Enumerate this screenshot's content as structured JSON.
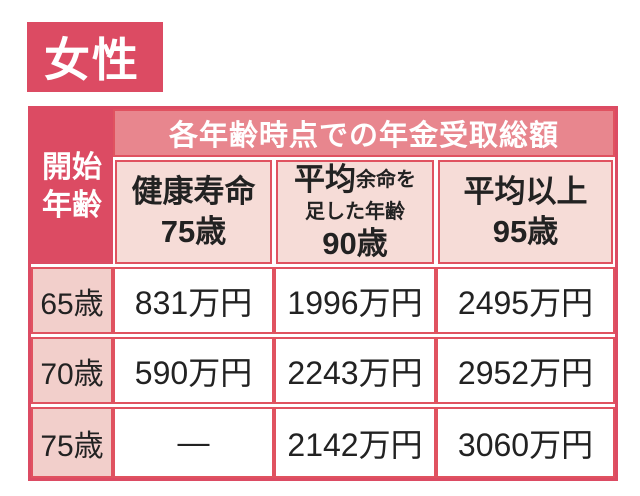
{
  "badge": {
    "label": "女性"
  },
  "table": {
    "corner_header": "開始\n年齢",
    "span_header": "各年齢時点での年金受取総額",
    "columns": [
      {
        "title": "健康寿命",
        "age": "75歳"
      },
      {
        "title_big": "平均",
        "title_small1": "余命を",
        "title_small2": "足した年齢",
        "age": "90歳"
      },
      {
        "title": "平均以上",
        "age": "95歳"
      }
    ],
    "rows": [
      {
        "age": "65歳",
        "values": [
          "831万円",
          "1996万円",
          "2495万円"
        ]
      },
      {
        "age": "70歳",
        "values": [
          "590万円",
          "2243万円",
          "2952万円"
        ]
      },
      {
        "age": "75歳",
        "values": [
          "—",
          "2142万円",
          "3060万円"
        ]
      }
    ]
  },
  "chart_data": {
    "type": "table",
    "title": "女性",
    "group_header": "各年齢時点での年金受取総額",
    "row_header_label": "開始年齢",
    "columns": [
      "健康寿命 75歳",
      "平均余命を足した年齢 90歳",
      "平均以上 95歳"
    ],
    "row_labels": [
      "65歳",
      "70歳",
      "75歳"
    ],
    "values_man_yen": [
      [
        831,
        1996,
        2495
      ],
      [
        590,
        2243,
        2952
      ],
      [
        null,
        2142,
        3060
      ]
    ],
    "unit": "万円",
    "missing_value_display": "—"
  },
  "colors": {
    "accent": "#dc4b63",
    "grid": "#e05260",
    "header_pink": "#e8868e",
    "light_pink": "#f6dcd7",
    "age_pink": "#f2cfcb",
    "ink": "#222222"
  }
}
